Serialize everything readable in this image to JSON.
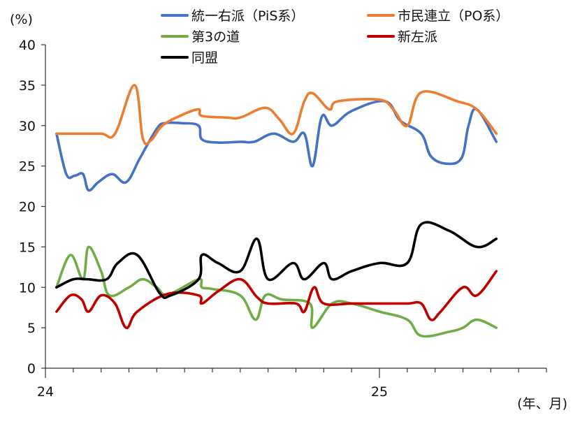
{
  "chart_data": {
    "type": "line",
    "ylabel": "(%)",
    "xlabel": "(年、月)",
    "ylim": [
      0,
      40
    ],
    "yticks": [
      0,
      5,
      10,
      15,
      20,
      25,
      30,
      35,
      40
    ],
    "x_range": [
      0,
      18
    ],
    "x_tick_labels": [
      {
        "x": 0,
        "label": "24"
      },
      {
        "x": 12,
        "label": "25"
      }
    ],
    "grid": false,
    "legend_position": "top",
    "series": [
      {
        "name": "統一右派（PiS系）",
        "color": "#4472C4",
        "points": [
          [
            0.4,
            29
          ],
          [
            0.75,
            24
          ],
          [
            1.05,
            23.8
          ],
          [
            1.35,
            24
          ],
          [
            1.55,
            22
          ],
          [
            1.9,
            23
          ],
          [
            2.4,
            24
          ],
          [
            2.9,
            23
          ],
          [
            3.4,
            26
          ],
          [
            4.0,
            29.6
          ],
          [
            4.3,
            30.3
          ],
          [
            4.9,
            30.3
          ],
          [
            5.5,
            30
          ],
          [
            5.62,
            28.3
          ],
          [
            6.2,
            27.9
          ],
          [
            7.0,
            28
          ],
          [
            7.5,
            28
          ],
          [
            8.2,
            29
          ],
          [
            8.9,
            28
          ],
          [
            9.3,
            29
          ],
          [
            9.6,
            25
          ],
          [
            9.93,
            31.1
          ],
          [
            10.3,
            30
          ],
          [
            11.0,
            31.8
          ],
          [
            12.2,
            33
          ],
          [
            12.75,
            30.6
          ],
          [
            13.5,
            29
          ],
          [
            13.85,
            26.2
          ],
          [
            14.4,
            25.3
          ],
          [
            14.95,
            26
          ],
          [
            15.2,
            30
          ],
          [
            15.5,
            32
          ],
          [
            16.2,
            28
          ]
        ]
      },
      {
        "name": "市民連立（PO系）",
        "color": "#ED7D31",
        "points": [
          [
            0.4,
            29
          ],
          [
            1.0,
            29
          ],
          [
            2.0,
            29
          ],
          [
            2.5,
            29
          ],
          [
            3.2,
            35
          ],
          [
            3.5,
            28.4
          ],
          [
            3.8,
            28.2
          ],
          [
            4.2,
            30
          ],
          [
            4.9,
            31.3
          ],
          [
            5.5,
            32
          ],
          [
            5.62,
            31.2
          ],
          [
            6.5,
            31
          ],
          [
            7.0,
            31
          ],
          [
            7.9,
            32.2
          ],
          [
            8.4,
            30.8
          ],
          [
            8.9,
            29
          ],
          [
            9.3,
            33
          ],
          [
            9.6,
            34
          ],
          [
            10.2,
            32
          ],
          [
            10.5,
            33
          ],
          [
            12.0,
            33.2
          ],
          [
            12.5,
            32
          ],
          [
            13.0,
            30
          ],
          [
            13.5,
            34.1
          ],
          [
            14.8,
            33
          ],
          [
            15.5,
            32
          ],
          [
            16.2,
            29
          ]
        ]
      },
      {
        "name": "第3の道",
        "color": "#70AD47",
        "points": [
          [
            0.4,
            10
          ],
          [
            0.9,
            14
          ],
          [
            1.35,
            11
          ],
          [
            1.55,
            15
          ],
          [
            2.0,
            12
          ],
          [
            2.3,
            9
          ],
          [
            3.0,
            10
          ],
          [
            3.5,
            11
          ],
          [
            4.0,
            10
          ],
          [
            4.4,
            9.1
          ],
          [
            5.5,
            11
          ],
          [
            5.62,
            10
          ],
          [
            6.0,
            9.8
          ],
          [
            7.0,
            9
          ],
          [
            7.55,
            6
          ],
          [
            7.9,
            9
          ],
          [
            8.5,
            8.5
          ],
          [
            9.5,
            8
          ],
          [
            9.6,
            5
          ],
          [
            10.3,
            8
          ],
          [
            11.0,
            8
          ],
          [
            12.0,
            7
          ],
          [
            13.0,
            6
          ],
          [
            13.5,
            4
          ],
          [
            14.5,
            4.5
          ],
          [
            15.0,
            5
          ],
          [
            15.5,
            6
          ],
          [
            16.2,
            5
          ]
        ]
      },
      {
        "name": "新左派",
        "color": "#C00000",
        "points": [
          [
            0.4,
            7
          ],
          [
            0.9,
            9
          ],
          [
            1.3,
            8.5
          ],
          [
            1.55,
            7
          ],
          [
            2.0,
            9
          ],
          [
            2.5,
            8
          ],
          [
            2.9,
            5
          ],
          [
            3.3,
            7
          ],
          [
            4.4,
            9.2
          ],
          [
            5.5,
            9
          ],
          [
            5.62,
            8
          ],
          [
            6.2,
            9.5
          ],
          [
            7.0,
            11
          ],
          [
            7.6,
            8.8
          ],
          [
            8.0,
            8
          ],
          [
            9.0,
            8
          ],
          [
            9.3,
            7
          ],
          [
            9.65,
            10
          ],
          [
            10.0,
            8
          ],
          [
            11.0,
            8
          ],
          [
            12.0,
            8
          ],
          [
            13.0,
            8
          ],
          [
            13.5,
            8
          ],
          [
            13.85,
            6
          ],
          [
            14.2,
            7
          ],
          [
            15.0,
            10
          ],
          [
            15.5,
            9
          ],
          [
            16.2,
            12
          ]
        ]
      },
      {
        "name": "同盟",
        "color": "#000000",
        "points": [
          [
            0.4,
            10
          ],
          [
            1.0,
            11
          ],
          [
            1.5,
            11
          ],
          [
            2.2,
            11
          ],
          [
            2.6,
            13
          ],
          [
            3.3,
            14
          ],
          [
            4.1,
            9.3
          ],
          [
            4.5,
            9
          ],
          [
            5.5,
            11
          ],
          [
            5.62,
            14
          ],
          [
            6.2,
            13
          ],
          [
            7.0,
            12
          ],
          [
            7.6,
            16
          ],
          [
            8.0,
            11
          ],
          [
            8.9,
            13
          ],
          [
            9.3,
            11
          ],
          [
            10.0,
            13
          ],
          [
            10.3,
            11
          ],
          [
            11.0,
            12
          ],
          [
            12.0,
            13
          ],
          [
            13.0,
            13
          ],
          [
            13.5,
            17.8
          ],
          [
            14.5,
            17
          ],
          [
            15.5,
            15
          ],
          [
            16.2,
            16
          ]
        ]
      }
    ]
  }
}
